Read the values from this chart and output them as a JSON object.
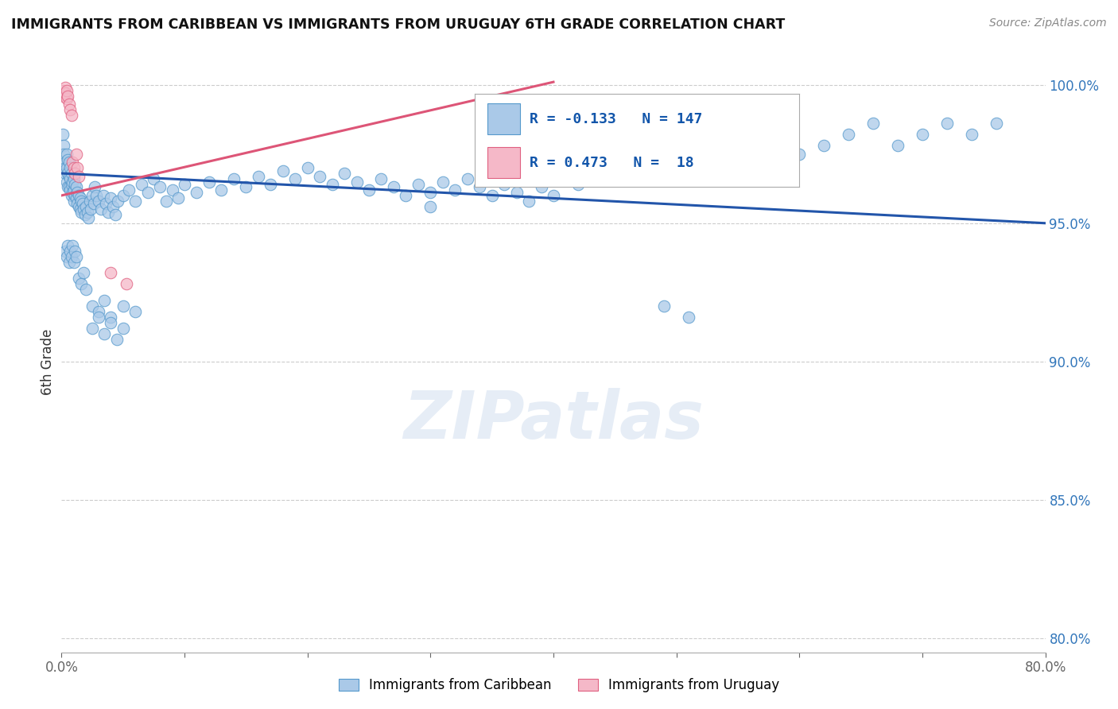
{
  "title": "IMMIGRANTS FROM CARIBBEAN VS IMMIGRANTS FROM URUGUAY 6TH GRADE CORRELATION CHART",
  "source": "Source: ZipAtlas.com",
  "ylabel": "6th Grade",
  "watermark": "ZIPatlas",
  "xlim": [
    0.0,
    0.8
  ],
  "ylim": [
    0.795,
    1.005
  ],
  "yticks": [
    0.8,
    0.85,
    0.9,
    0.95,
    1.0
  ],
  "ytick_labels": [
    "80.0%",
    "85.0%",
    "90.0%",
    "95.0%",
    "100.0%"
  ],
  "xticks": [
    0.0,
    0.1,
    0.2,
    0.3,
    0.4,
    0.5,
    0.6,
    0.7,
    0.8
  ],
  "xtick_labels": [
    "0.0%",
    "",
    "",
    "",
    "",
    "",
    "",
    "",
    "80.0%"
  ],
  "legend_blue_R": "-0.133",
  "legend_blue_N": "147",
  "legend_pink_R": "0.473",
  "legend_pink_N": "18",
  "legend_label_blue": "Immigrants from Caribbean",
  "legend_label_pink": "Immigrants from Uruguay",
  "blue_color": "#aac9e8",
  "blue_edge_color": "#5599cc",
  "pink_color": "#f5b8c8",
  "pink_edge_color": "#e06080",
  "blue_line_color": "#2255aa",
  "pink_line_color": "#dd5577",
  "blue_line": [
    0.0,
    0.8,
    0.968,
    0.95
  ],
  "pink_line": [
    0.0,
    0.4,
    0.96,
    1.001
  ],
  "blue_scatter_x": [
    0.001,
    0.002,
    0.002,
    0.003,
    0.003,
    0.003,
    0.004,
    0.004,
    0.004,
    0.005,
    0.005,
    0.005,
    0.006,
    0.006,
    0.006,
    0.007,
    0.007,
    0.007,
    0.008,
    0.008,
    0.008,
    0.009,
    0.009,
    0.01,
    0.01,
    0.01,
    0.011,
    0.011,
    0.012,
    0.012,
    0.013,
    0.013,
    0.014,
    0.014,
    0.015,
    0.015,
    0.016,
    0.016,
    0.017,
    0.018,
    0.019,
    0.02,
    0.021,
    0.022,
    0.023,
    0.024,
    0.025,
    0.026,
    0.027,
    0.028,
    0.03,
    0.032,
    0.034,
    0.036,
    0.038,
    0.04,
    0.042,
    0.044,
    0.046,
    0.05,
    0.055,
    0.06,
    0.065,
    0.07,
    0.075,
    0.08,
    0.085,
    0.09,
    0.095,
    0.1,
    0.11,
    0.12,
    0.13,
    0.14,
    0.15,
    0.16,
    0.17,
    0.18,
    0.19,
    0.2,
    0.21,
    0.22,
    0.23,
    0.24,
    0.25,
    0.26,
    0.27,
    0.28,
    0.29,
    0.3,
    0.31,
    0.32,
    0.33,
    0.34,
    0.35,
    0.36,
    0.37,
    0.38,
    0.39,
    0.4,
    0.42,
    0.44,
    0.46,
    0.48,
    0.5,
    0.52,
    0.54,
    0.56,
    0.58,
    0.6,
    0.62,
    0.64,
    0.66,
    0.68,
    0.7,
    0.72,
    0.74,
    0.76,
    0.003,
    0.004,
    0.005,
    0.006,
    0.007,
    0.008,
    0.009,
    0.01,
    0.011,
    0.012,
    0.014,
    0.016,
    0.018,
    0.02,
    0.025,
    0.03,
    0.035,
    0.04,
    0.05,
    0.06,
    0.025,
    0.03,
    0.035,
    0.04,
    0.045,
    0.05,
    0.3,
    0.49,
    0.51
  ],
  "blue_scatter_y": [
    0.982,
    0.978,
    0.975,
    0.972,
    0.97,
    0.968,
    0.975,
    0.97,
    0.965,
    0.973,
    0.968,
    0.963,
    0.972,
    0.967,
    0.963,
    0.97,
    0.966,
    0.962,
    0.968,
    0.964,
    0.96,
    0.965,
    0.961,
    0.966,
    0.962,
    0.958,
    0.964,
    0.96,
    0.963,
    0.959,
    0.961,
    0.957,
    0.96,
    0.956,
    0.959,
    0.955,
    0.958,
    0.954,
    0.957,
    0.955,
    0.953,
    0.956,
    0.954,
    0.952,
    0.958,
    0.955,
    0.96,
    0.957,
    0.963,
    0.96,
    0.958,
    0.955,
    0.96,
    0.957,
    0.954,
    0.959,
    0.956,
    0.953,
    0.958,
    0.96,
    0.962,
    0.958,
    0.964,
    0.961,
    0.966,
    0.963,
    0.958,
    0.962,
    0.959,
    0.964,
    0.961,
    0.965,
    0.962,
    0.966,
    0.963,
    0.967,
    0.964,
    0.969,
    0.966,
    0.97,
    0.967,
    0.964,
    0.968,
    0.965,
    0.962,
    0.966,
    0.963,
    0.96,
    0.964,
    0.961,
    0.965,
    0.962,
    0.966,
    0.963,
    0.96,
    0.964,
    0.961,
    0.958,
    0.963,
    0.96,
    0.964,
    0.968,
    0.972,
    0.968,
    0.972,
    0.968,
    0.972,
    0.975,
    0.972,
    0.975,
    0.978,
    0.982,
    0.986,
    0.978,
    0.982,
    0.986,
    0.982,
    0.986,
    0.94,
    0.938,
    0.942,
    0.936,
    0.94,
    0.938,
    0.942,
    0.936,
    0.94,
    0.938,
    0.93,
    0.928,
    0.932,
    0.926,
    0.92,
    0.918,
    0.922,
    0.916,
    0.92,
    0.918,
    0.912,
    0.916,
    0.91,
    0.914,
    0.908,
    0.912,
    0.956,
    0.92,
    0.916
  ],
  "pink_scatter_x": [
    0.001,
    0.002,
    0.003,
    0.003,
    0.004,
    0.004,
    0.005,
    0.006,
    0.007,
    0.008,
    0.009,
    0.01,
    0.011,
    0.012,
    0.013,
    0.014,
    0.04,
    0.053
  ],
  "pink_scatter_y": [
    0.998,
    0.996,
    0.999,
    0.997,
    0.995,
    0.998,
    0.996,
    0.993,
    0.991,
    0.989,
    0.972,
    0.97,
    0.968,
    0.975,
    0.97,
    0.967,
    0.932,
    0.928
  ]
}
